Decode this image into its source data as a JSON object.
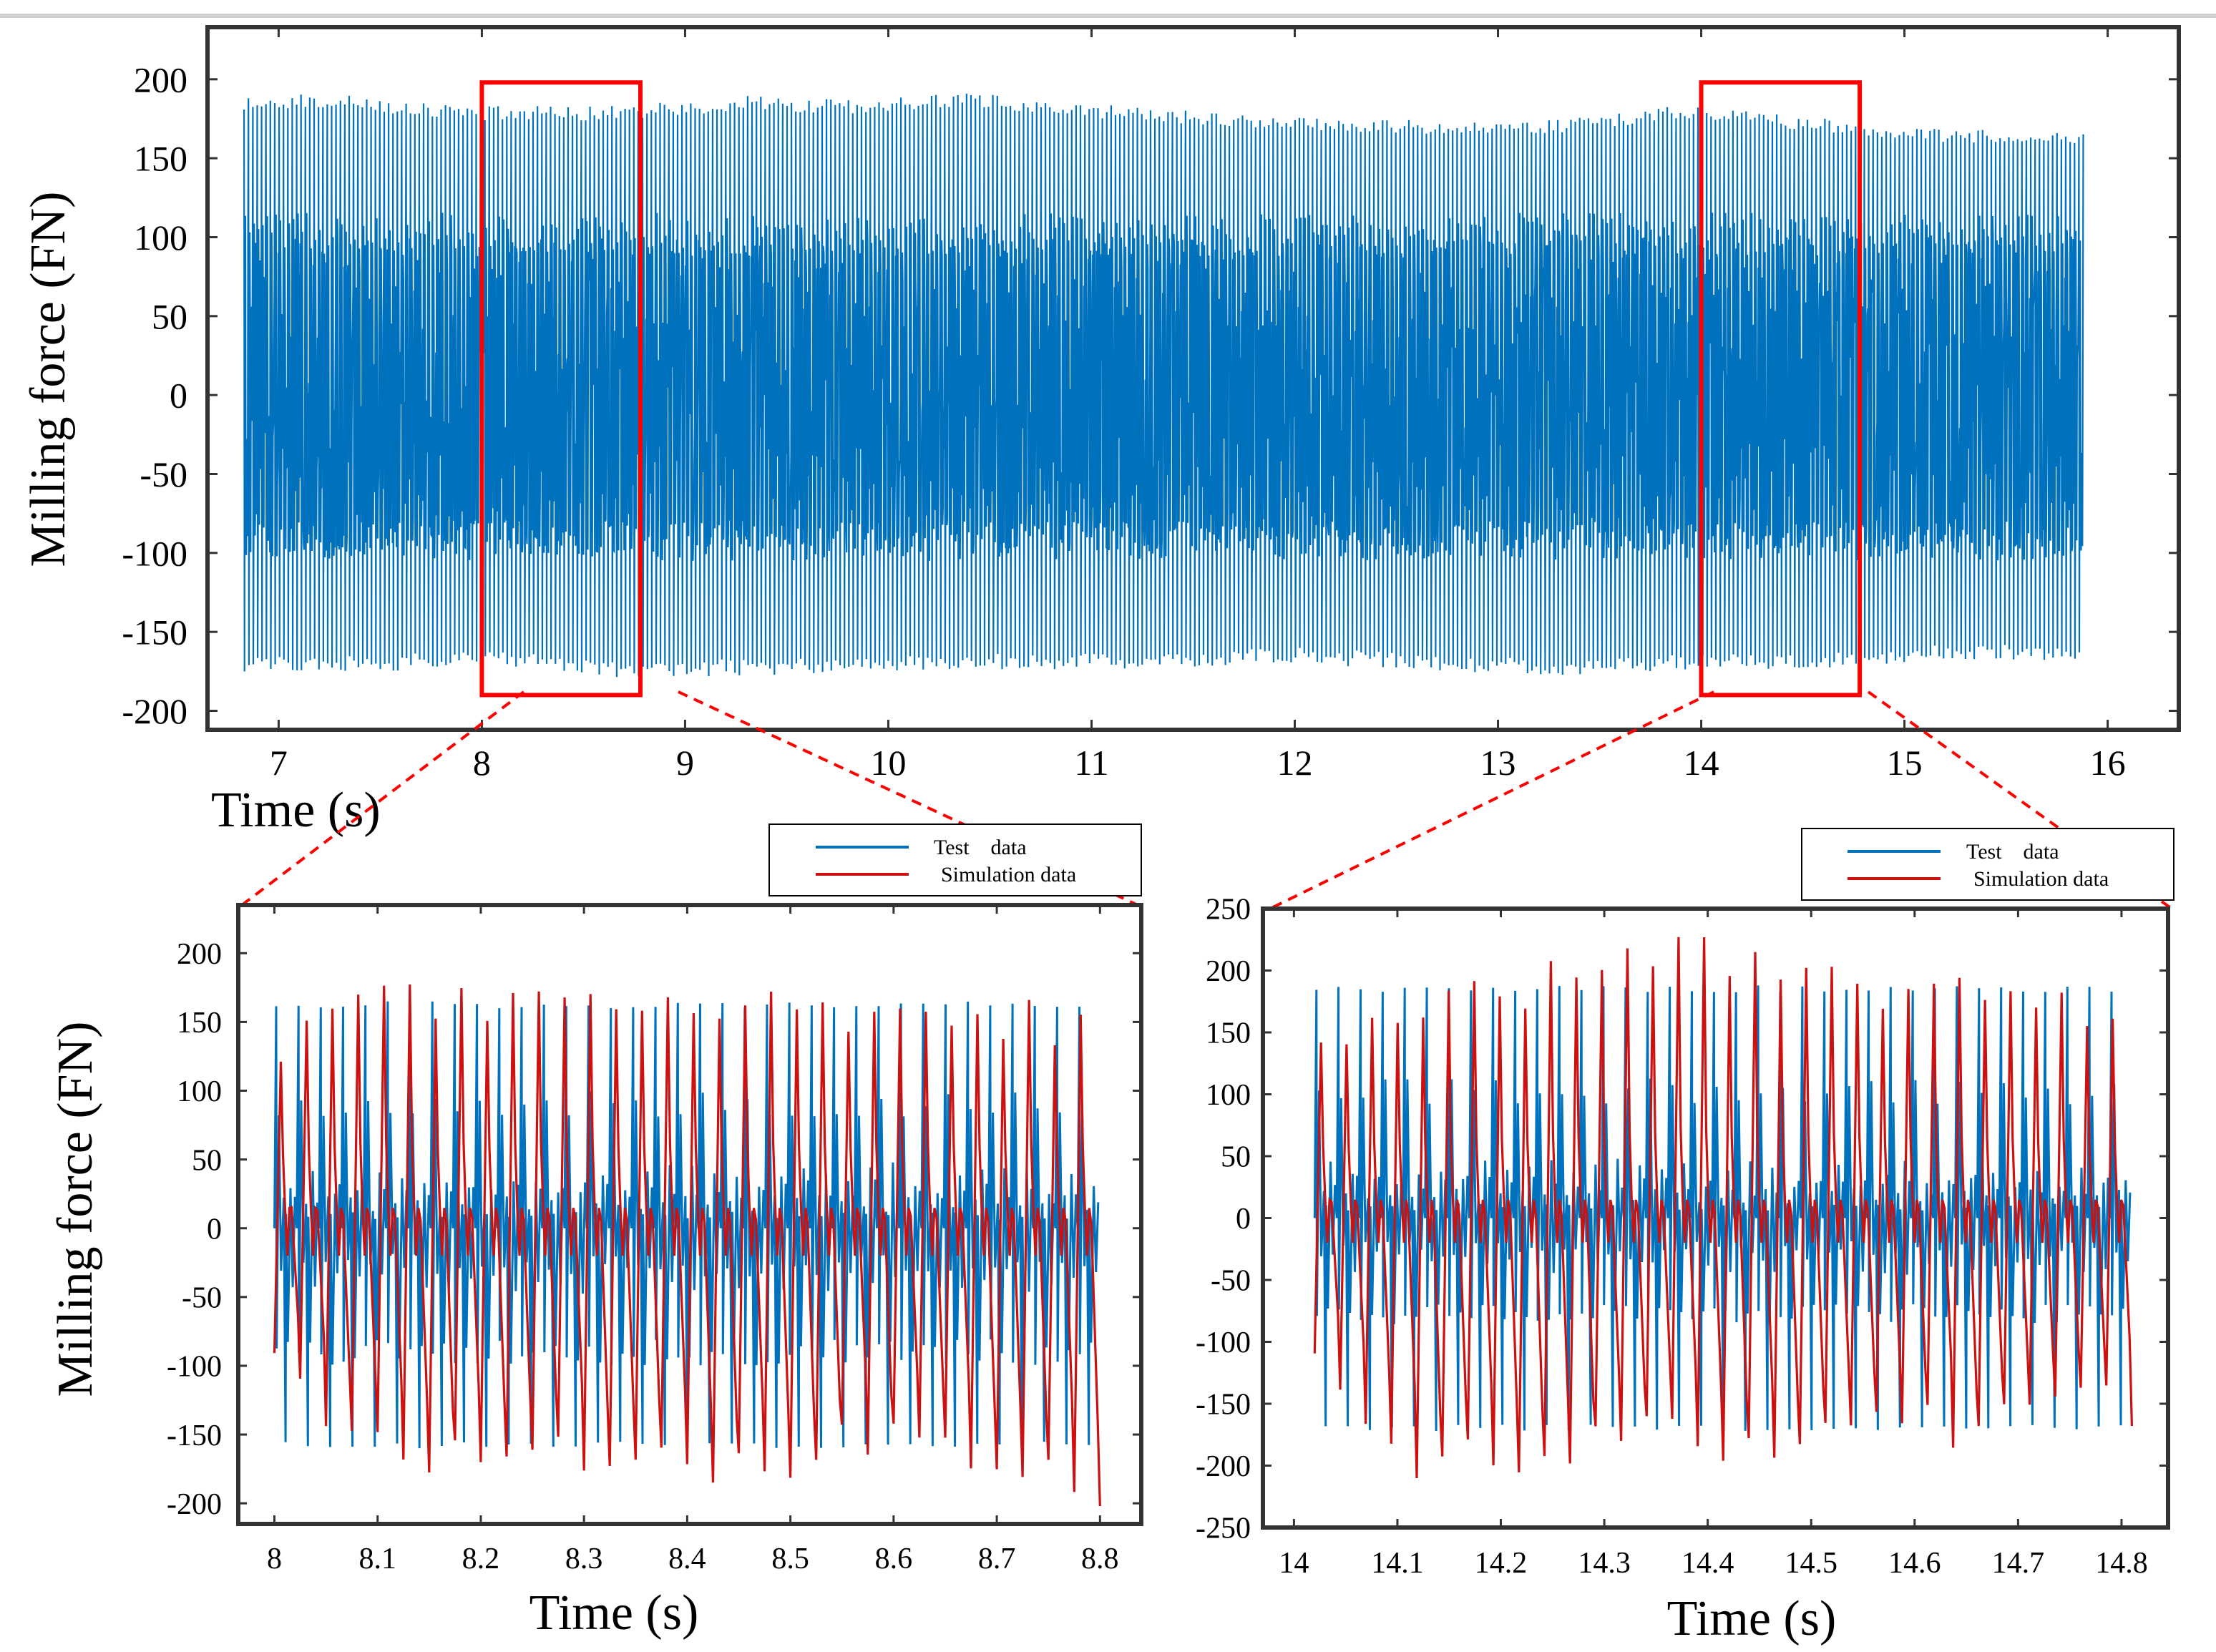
{
  "colors": {
    "test": "#0072BD",
    "simulation": "#CC1111",
    "zoom_box": "#FF0000",
    "frame": "#333333"
  },
  "chart_data": [
    {
      "type": "line",
      "xlabel": "Time (s)",
      "ylabel": "Milling force (FN)",
      "xlim": [
        6.65,
        16.35
      ],
      "ylim": [
        -212,
        233
      ],
      "xticks": [
        7,
        8,
        9,
        10,
        11,
        12,
        13,
        14,
        15,
        16
      ],
      "yticks": [
        -200,
        -150,
        -100,
        -50,
        0,
        50,
        100,
        150,
        200
      ],
      "grid": false,
      "series": [
        {
          "color": "#0072BD",
          "x_range": [
            6.83,
            15.88
          ],
          "upper_peak_envelope": [
            [
              6.83,
              188
            ],
            [
              7.2,
              192
            ],
            [
              7.6,
              186
            ],
            [
              8.0,
              183
            ],
            [
              8.5,
              183
            ],
            [
              9.0,
              186
            ],
            [
              9.3,
              190
            ],
            [
              9.8,
              187
            ],
            [
              10.4,
              192
            ],
            [
              10.8,
              186
            ],
            [
              11.4,
              181
            ],
            [
              12.0,
              177
            ],
            [
              12.6,
              174
            ],
            [
              13.0,
              172
            ],
            [
              13.4,
              176
            ],
            [
              13.9,
              184
            ],
            [
              14.3,
              179
            ],
            [
              14.8,
              173
            ],
            [
              15.2,
              168
            ],
            [
              15.88,
              168
            ]
          ],
          "lower_peak_envelope": [
            [
              6.83,
              -176
            ],
            [
              7.5,
              -176
            ],
            [
              8.0,
              -170
            ],
            [
              8.6,
              -180
            ],
            [
              9.2,
              -178
            ],
            [
              10.0,
              -176
            ],
            [
              10.6,
              -174
            ],
            [
              11.2,
              -174
            ],
            [
              12.0,
              -170
            ],
            [
              12.6,
              -174
            ],
            [
              13.2,
              -178
            ],
            [
              14.0,
              -174
            ],
            [
              14.6,
              -174
            ],
            [
              15.2,
              -168
            ],
            [
              15.88,
              -168
            ]
          ],
          "secondary_levels": [
            110,
            -100
          ]
        }
      ],
      "zoom_boxes": [
        {
          "x": [
            8.0,
            8.78
          ],
          "y": [
            -190,
            198
          ]
        },
        {
          "x": [
            14.0,
            14.78
          ],
          "y": [
            -190,
            198
          ]
        }
      ]
    },
    {
      "type": "line",
      "xlabel": "Time (s)",
      "ylabel": "Milling force (FN)",
      "xlim": [
        7.965,
        8.84
      ],
      "ylim": [
        -215,
        235
      ],
      "xticks": [
        8,
        8.1,
        8.2,
        8.3,
        8.4,
        8.5,
        8.6,
        8.7,
        8.8
      ],
      "yticks": [
        -200,
        -150,
        -100,
        -50,
        0,
        50,
        100,
        150,
        200
      ],
      "grid": false,
      "legend": {
        "position": "above-right",
        "entries": [
          "Test    data",
          "Simulation data"
        ]
      },
      "series": [
        {
          "name": "Test    data",
          "color": "#0072BD",
          "x_range": [
            8.0,
            8.8
          ],
          "cycles": 37,
          "pulse_levels": {
            "peak_high": 165,
            "peak_low": -160,
            "secondary_high": 95,
            "secondary_low": -95
          }
        },
        {
          "name": "Simulation data",
          "color": "#CC1111",
          "x_range": [
            8.0,
            8.8
          ],
          "cycles": 32,
          "peak_max": [
            [
              8.0,
              150
            ],
            [
              8.06,
              178
            ],
            [
              8.25,
              180
            ],
            [
              8.5,
              176
            ],
            [
              8.62,
              178
            ],
            [
              8.8,
              158
            ]
          ],
          "peak_min": [
            [
              8.0,
              -100
            ],
            [
              8.08,
              -178
            ],
            [
              8.34,
              -190
            ],
            [
              8.7,
              -176
            ],
            [
              8.8,
              -202
            ]
          ]
        }
      ]
    },
    {
      "type": "line",
      "xlabel": "Time (s)",
      "ylabel": "",
      "xlim": [
        13.97,
        14.845
      ],
      "ylim": [
        -250,
        250
      ],
      "xticks": [
        14,
        14.1,
        14.2,
        14.3,
        14.4,
        14.5,
        14.6,
        14.7,
        14.8
      ],
      "yticks": [
        -250,
        -200,
        -150,
        -100,
        -50,
        0,
        50,
        100,
        150,
        200,
        250
      ],
      "grid": false,
      "legend": {
        "position": "above-right",
        "entries": [
          "Test    data",
          "Simulation data"
        ]
      },
      "series": [
        {
          "name": "Test    data",
          "color": "#0072BD",
          "x_range": [
            14.02,
            14.81
          ],
          "cycles": 37,
          "pulse_levels": {
            "peak_high": 188,
            "peak_low": -172,
            "secondary_high": 108,
            "secondary_low": -82
          }
        },
        {
          "name": "Simulation data",
          "color": "#CC1111",
          "x_range": [
            14.02,
            14.81
          ],
          "cycles": 32,
          "peak_max": [
            [
              14.02,
              170
            ],
            [
              14.23,
              212
            ],
            [
              14.35,
              235
            ],
            [
              14.5,
              205
            ],
            [
              14.8,
              188
            ]
          ],
          "peak_min": [
            [
              14.02,
              -130
            ],
            [
              14.09,
              -218
            ],
            [
              14.25,
              -205
            ],
            [
              14.64,
              -192
            ],
            [
              14.8,
              -168
            ]
          ]
        }
      ]
    }
  ]
}
